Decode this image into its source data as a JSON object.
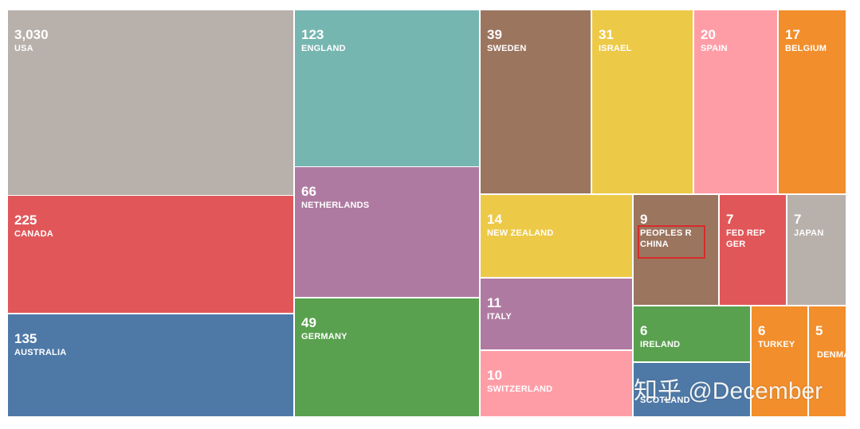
{
  "chart_data": {
    "type": "treemap",
    "items": [
      {
        "value": "3,030",
        "label": "USA",
        "color": "#b8b0ab"
      },
      {
        "value": "225",
        "label": "CANADA",
        "color": "#e15759"
      },
      {
        "value": "135",
        "label": "AUSTRALIA",
        "color": "#4e79a7"
      },
      {
        "value": "123",
        "label": "ENGLAND",
        "color": "#76b6b1"
      },
      {
        "value": "66",
        "label": "NETHERLANDS",
        "color": "#af7aa1"
      },
      {
        "value": "49",
        "label": "GERMANY",
        "color": "#59a14f"
      },
      {
        "value": "39",
        "label": "SWEDEN",
        "color": "#9c755f"
      },
      {
        "value": "31",
        "label": "ISRAEL",
        "color": "#edc948"
      },
      {
        "value": "20",
        "label": "SPAIN",
        "color": "#ff9da7"
      },
      {
        "value": "17",
        "label": "BELGIUM",
        "color": "#f28e2b"
      },
      {
        "value": "14",
        "label": "NEW ZEALAND",
        "color": "#edc948"
      },
      {
        "value": "9",
        "label": "PEOPLES R CHINA",
        "color": "#9c755f"
      },
      {
        "value": "7",
        "label": "FED REP GER",
        "color": "#e15759"
      },
      {
        "value": "7",
        "label": "JAPAN",
        "color": "#b8b0ab"
      },
      {
        "value": "11",
        "label": "ITALY",
        "color": "#af7aa1"
      },
      {
        "value": "6",
        "label": "IRELAND",
        "color": "#59a14f"
      },
      {
        "value": "6",
        "label": "TURKEY",
        "color": "#f28e2b"
      },
      {
        "value": "5",
        "label": "DENMA",
        "color": "#f28e2b"
      },
      {
        "value": "10",
        "label": "SWITZERLAND",
        "color": "#ff9da7"
      },
      {
        "value": "",
        "label": "SCOTLAND",
        "color": "#4e79a7"
      }
    ]
  },
  "watermark": "知乎 @December",
  "highlight_item": "PEOPLES R CHINA"
}
